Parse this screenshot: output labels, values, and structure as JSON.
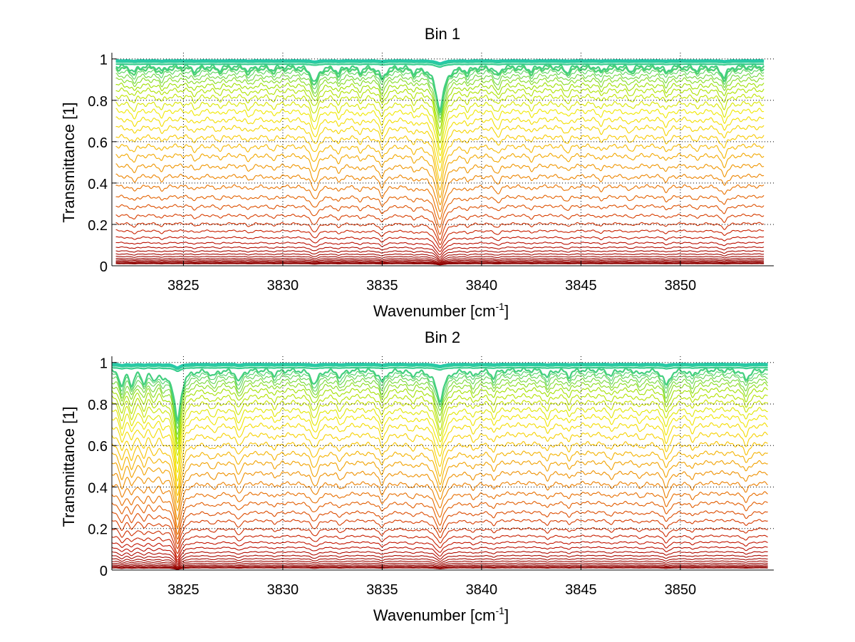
{
  "chart_data": [
    {
      "type": "line",
      "title": "Bin 1",
      "xlabel": "Wavenumber [cm",
      "xlabel_sup": "-1",
      "xlabel_end": "]",
      "ylabel": "Transmittance [1]",
      "xlim": [
        3821.4,
        3854.7
      ],
      "ylim": [
        0,
        1.03
      ],
      "xticks": [
        "3825",
        "3830",
        "3835",
        "3840",
        "3845",
        "3850"
      ],
      "yticks": [
        "0",
        "0.2",
        "0.4",
        "0.6",
        "0.8",
        "1"
      ],
      "grid": "dotted",
      "x_start": 3821.6,
      "x_end": 3854.2,
      "levels": [
        0.01,
        0.013,
        0.017,
        0.022,
        0.028,
        0.035,
        0.045,
        0.057,
        0.072,
        0.09,
        0.112,
        0.138,
        0.17,
        0.205,
        0.245,
        0.29,
        0.335,
        0.385,
        0.435,
        0.485,
        0.535,
        0.58,
        0.625,
        0.67,
        0.71,
        0.75,
        0.785,
        0.82,
        0.85,
        0.875,
        0.9,
        0.92,
        0.94,
        0.955,
        0.965,
        0.975,
        0.985,
        0.99,
        0.995
      ],
      "absorption_lines": [
        {
          "x": 3822.5,
          "depth": 0.05,
          "width": 0.15
        },
        {
          "x": 3823.9,
          "depth": 0.04,
          "width": 0.15
        },
        {
          "x": 3825.6,
          "depth": 0.04,
          "width": 0.15
        },
        {
          "x": 3826.8,
          "depth": 0.03,
          "width": 0.15
        },
        {
          "x": 3828.3,
          "depth": 0.04,
          "width": 0.15
        },
        {
          "x": 3829.5,
          "depth": 0.03,
          "width": 0.15
        },
        {
          "x": 3831.6,
          "depth": 0.14,
          "width": 0.2
        },
        {
          "x": 3832.8,
          "depth": 0.05,
          "width": 0.15
        },
        {
          "x": 3833.9,
          "depth": 0.04,
          "width": 0.15
        },
        {
          "x": 3835.0,
          "depth": 0.1,
          "width": 0.18
        },
        {
          "x": 3836.6,
          "depth": 0.04,
          "width": 0.15
        },
        {
          "x": 3837.9,
          "depth": 0.35,
          "width": 0.25
        },
        {
          "x": 3839.3,
          "depth": 0.04,
          "width": 0.15
        },
        {
          "x": 3840.8,
          "depth": 0.07,
          "width": 0.15
        },
        {
          "x": 3842.5,
          "depth": 0.04,
          "width": 0.15
        },
        {
          "x": 3844.3,
          "depth": 0.05,
          "width": 0.15
        },
        {
          "x": 3846.0,
          "depth": 0.04,
          "width": 0.15
        },
        {
          "x": 3847.5,
          "depth": 0.04,
          "width": 0.15
        },
        {
          "x": 3849.3,
          "depth": 0.05,
          "width": 0.15
        },
        {
          "x": 3850.8,
          "depth": 0.03,
          "width": 0.15
        },
        {
          "x": 3852.2,
          "depth": 0.09,
          "width": 0.18
        }
      ]
    },
    {
      "type": "line",
      "title": "Bin 2",
      "xlabel": "Wavenumber [cm",
      "xlabel_sup": "-1",
      "xlabel_end": "]",
      "ylabel": "Transmittance [1]",
      "xlim": [
        3821.4,
        3854.7
      ],
      "ylim": [
        0,
        1.03
      ],
      "xticks": [
        "3825",
        "3830",
        "3835",
        "3840",
        "3845",
        "3850"
      ],
      "yticks": [
        "0",
        "0.2",
        "0.4",
        "0.6",
        "0.8",
        "1"
      ],
      "grid": "dotted",
      "x_start": 3821.4,
      "x_end": 3854.4,
      "levels": [
        0.01,
        0.014,
        0.019,
        0.025,
        0.033,
        0.043,
        0.055,
        0.07,
        0.088,
        0.11,
        0.135,
        0.165,
        0.2,
        0.24,
        0.28,
        0.325,
        0.37,
        0.42,
        0.47,
        0.52,
        0.565,
        0.61,
        0.655,
        0.7,
        0.74,
        0.775,
        0.81,
        0.84,
        0.87,
        0.895,
        0.915,
        0.935,
        0.95,
        0.965,
        0.975,
        0.985,
        0.99,
        0.995
      ],
      "absorption_lines": [
        {
          "x": 3821.9,
          "depth": 0.14,
          "width": 0.12
        },
        {
          "x": 3822.4,
          "depth": 0.12,
          "width": 0.12
        },
        {
          "x": 3823.0,
          "depth": 0.1,
          "width": 0.12
        },
        {
          "x": 3823.5,
          "depth": 0.08,
          "width": 0.12
        },
        {
          "x": 3824.0,
          "depth": 0.06,
          "width": 0.12
        },
        {
          "x": 3824.7,
          "depth": 0.42,
          "width": 0.2
        },
        {
          "x": 3826.5,
          "depth": 0.05,
          "width": 0.15
        },
        {
          "x": 3827.8,
          "depth": 0.1,
          "width": 0.15
        },
        {
          "x": 3829.6,
          "depth": 0.04,
          "width": 0.15
        },
        {
          "x": 3831.6,
          "depth": 0.12,
          "width": 0.2
        },
        {
          "x": 3832.9,
          "depth": 0.06,
          "width": 0.15
        },
        {
          "x": 3835.0,
          "depth": 0.1,
          "width": 0.18
        },
        {
          "x": 3836.5,
          "depth": 0.04,
          "width": 0.15
        },
        {
          "x": 3837.9,
          "depth": 0.25,
          "width": 0.25
        },
        {
          "x": 3839.6,
          "depth": 0.05,
          "width": 0.15
        },
        {
          "x": 3840.6,
          "depth": 0.06,
          "width": 0.15
        },
        {
          "x": 3843.3,
          "depth": 0.06,
          "width": 0.15
        },
        {
          "x": 3844.4,
          "depth": 0.05,
          "width": 0.15
        },
        {
          "x": 3846.5,
          "depth": 0.05,
          "width": 0.15
        },
        {
          "x": 3848.0,
          "depth": 0.04,
          "width": 0.15
        },
        {
          "x": 3849.3,
          "depth": 0.13,
          "width": 0.18
        },
        {
          "x": 3850.6,
          "depth": 0.05,
          "width": 0.15
        },
        {
          "x": 3853.3,
          "depth": 0.08,
          "width": 0.18
        }
      ]
    }
  ],
  "colors": {
    "axis": "#000000",
    "grid": "#000000",
    "colormap": [
      "#8a0000",
      "#c01000",
      "#d84000",
      "#e87000",
      "#f09a00",
      "#f8c800",
      "#f0e800",
      "#9ee000",
      "#20c8b0"
    ]
  }
}
